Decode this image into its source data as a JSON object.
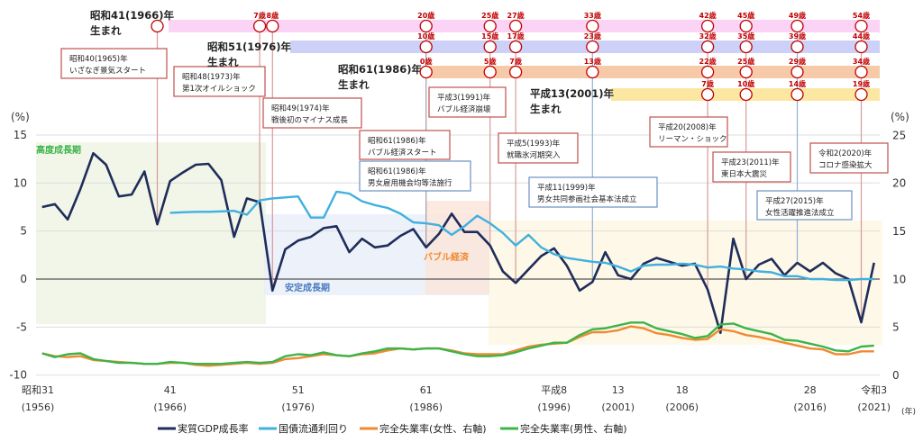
{
  "chart_data": {
    "type": "line",
    "title": "",
    "y_left_unit": "(%)",
    "y_right_unit": "(%)",
    "x_unit": "(年)",
    "ylim_left": [
      -10,
      15
    ],
    "ylim_right": [
      0,
      25
    ],
    "yticks_left": [
      "15",
      "10",
      "5",
      "0",
      "-5",
      "-10"
    ],
    "yticks_right": [
      "25",
      "20",
      "15",
      "10",
      "5",
      "0"
    ],
    "grid": true,
    "legend_position": "bottom",
    "x_ticks": [
      {
        "year": 1956,
        "era": "昭和31",
        "ad": "(1956)"
      },
      {
        "year": 1966,
        "era": "41",
        "ad": "(1966)"
      },
      {
        "year": 1976,
        "era": "51",
        "ad": "(1976)"
      },
      {
        "year": 1986,
        "era": "61",
        "ad": "(1986)"
      },
      {
        "year": 1996,
        "era": "平成8",
        "ad": "(1996)"
      },
      {
        "year": 2001,
        "era": "13",
        "ad": "(2001)"
      },
      {
        "year": 2006,
        "era": "18",
        "ad": "(2006)"
      },
      {
        "year": 2016,
        "era": "28",
        "ad": "(2016)"
      },
      {
        "year": 2021,
        "era": "令和3",
        "ad": "(2021)"
      }
    ],
    "series": [
      {
        "name": "実質GDP成長率",
        "axis": "left",
        "color": "#1f2d5a",
        "start": 1956,
        "values": [
          7.5,
          7.8,
          6.2,
          9.4,
          13.1,
          11.9,
          8.6,
          8.8,
          11.2,
          5.7,
          10.2,
          11.1,
          11.9,
          12.0,
          10.3,
          4.4,
          8.4,
          8.0,
          -1.2,
          3.1,
          4.0,
          4.4,
          5.3,
          5.5,
          2.8,
          4.2,
          3.3,
          3.5,
          4.5,
          5.2,
          3.3,
          4.7,
          6.8,
          4.9,
          4.9,
          3.5,
          0.8,
          -0.4,
          1.0,
          2.4,
          3.2,
          1.4,
          -1.2,
          -0.3,
          2.8,
          0.4,
          0.0,
          1.6,
          2.2,
          1.8,
          1.4,
          1.6,
          -1.1,
          -5.6,
          4.2,
          0.0,
          1.5,
          2.1,
          0.4,
          1.7,
          0.8,
          1.7,
          0.6,
          0.0,
          -4.5,
          1.7
        ]
      },
      {
        "name": "国債流通利回り",
        "axis": "left",
        "color": "#40b0e0",
        "start": 1966,
        "values": [
          6.9,
          6.95,
          7.0,
          7.0,
          7.05,
          7.1,
          6.7,
          8.2,
          8.4,
          8.5,
          8.6,
          6.4,
          6.4,
          9.1,
          8.9,
          8.1,
          7.7,
          7.4,
          6.8,
          5.9,
          5.8,
          5.6,
          4.6,
          5.5,
          6.6,
          5.8,
          4.8,
          3.5,
          4.6,
          3.3,
          2.6,
          2.2,
          2.0,
          1.8,
          1.7,
          1.3,
          0.8,
          1.4,
          1.5,
          1.5,
          1.6,
          1.5,
          1.2,
          1.3,
          1.1,
          1.0,
          0.8,
          0.7,
          0.3,
          0.3,
          0.0,
          0.0,
          -0.1,
          -0.1,
          0.0,
          0.0
        ]
      },
      {
        "name": "完全失業率(女性、右軸)",
        "axis": "right",
        "color": "#f08a30",
        "start": 1956,
        "values": [
          2.3,
          2.0,
          1.9,
          2.0,
          1.6,
          1.5,
          1.4,
          1.3,
          1.2,
          1.2,
          1.3,
          1.3,
          1.1,
          1.0,
          1.1,
          1.2,
          1.3,
          1.2,
          1.3,
          1.7,
          1.8,
          2.0,
          2.2,
          2.1,
          2.0,
          2.2,
          2.3,
          2.6,
          2.8,
          2.7,
          2.8,
          2.8,
          2.6,
          2.3,
          2.2,
          2.2,
          2.2,
          2.6,
          3.0,
          3.2,
          3.3,
          3.4,
          4.0,
          4.5,
          4.5,
          4.7,
          5.1,
          4.9,
          4.4,
          4.2,
          3.9,
          3.7,
          3.8,
          4.8,
          4.6,
          4.2,
          4.0,
          3.7,
          3.4,
          3.1,
          2.8,
          2.7,
          2.2,
          2.2,
          2.5,
          2.5
        ]
      },
      {
        "name": "完全失業率(男性、右軸)",
        "axis": "right",
        "color": "#3cb44a",
        "start": 1956,
        "values": [
          2.3,
          1.9,
          2.2,
          2.3,
          1.7,
          1.5,
          1.3,
          1.3,
          1.2,
          1.2,
          1.4,
          1.3,
          1.2,
          1.2,
          1.2,
          1.3,
          1.4,
          1.3,
          1.4,
          2.0,
          2.2,
          2.1,
          2.4,
          2.1,
          2.0,
          2.3,
          2.5,
          2.8,
          2.8,
          2.7,
          2.8,
          2.8,
          2.5,
          2.2,
          2.0,
          2.0,
          2.1,
          2.4,
          2.8,
          3.1,
          3.4,
          3.4,
          4.2,
          4.8,
          4.9,
          5.2,
          5.5,
          5.5,
          4.9,
          4.6,
          4.3,
          3.9,
          4.1,
          5.3,
          5.4,
          4.9,
          4.6,
          4.3,
          3.7,
          3.6,
          3.3,
          3.0,
          2.6,
          2.5,
          3.0,
          3.1
        ]
      }
    ],
    "periods": [
      {
        "label": "高度成長期",
        "color": "#3cb44a"
      },
      {
        "label": "安定成長期",
        "color": "#4a7cc0"
      },
      {
        "label": "バブル経済",
        "color": "#f08a30"
      }
    ],
    "annotations": [
      {
        "year": 1965,
        "kind": "event",
        "line1": "昭和40(1965)年",
        "line2": "いざなぎ景気スタート"
      },
      {
        "year": 1973,
        "kind": "event",
        "line1": "昭和48(1973)年",
        "line2": "第1次オイルショック"
      },
      {
        "year": 1974,
        "kind": "event",
        "line1": "昭和49(1974)年",
        "line2": "戦後初のマイナス成長"
      },
      {
        "year": 1991,
        "kind": "event",
        "line1": "平成3(1991)年",
        "line2": "バブル経済崩壊"
      },
      {
        "year": 1986,
        "kind": "event",
        "line1": "昭和61(1986)年",
        "line2": "バブル経済スタート"
      },
      {
        "year": 1986,
        "kind": "law",
        "line1": "昭和61(1986)年",
        "line2": "男女雇用機会均等法施行"
      },
      {
        "year": 1993,
        "kind": "event",
        "line1": "平成5(1993)年",
        "line2": "就職氷河期突入"
      },
      {
        "year": 1999,
        "kind": "law",
        "line1": "平成11(1999)年",
        "line2": "男女共同参画社会基本法成立"
      },
      {
        "year": 2008,
        "kind": "event",
        "line1": "平成20(2008)年",
        "line2": "リーマン・ショック"
      },
      {
        "year": 2011,
        "kind": "event",
        "line1": "平成23(2011)年",
        "line2": "東日本大震災"
      },
      {
        "year": 2015,
        "kind": "law",
        "line1": "平成27(2015)年",
        "line2": "女性活躍推進法成立"
      },
      {
        "year": 2020,
        "kind": "event",
        "line1": "令和2(2020)年",
        "line2": "コロナ感染拡大"
      }
    ],
    "cohorts": [
      {
        "line1": "昭和41(1966)年",
        "line2": "生まれ",
        "color": "#fbd3f5",
        "markers": [
          {
            "year": 1965,
            "age": ""
          },
          {
            "year": 1973,
            "age": "7歳"
          },
          {
            "year": 1974,
            "age": "8歳"
          },
          {
            "year": 1986,
            "age": "20歳"
          },
          {
            "year": 1991,
            "age": "25歳"
          },
          {
            "year": 1993,
            "age": "27歳"
          },
          {
            "year": 1999,
            "age": "33歳"
          },
          {
            "year": 2008,
            "age": "42歳"
          },
          {
            "year": 2011,
            "age": "45歳"
          },
          {
            "year": 2015,
            "age": "49歳"
          },
          {
            "year": 2020,
            "age": "54歳"
          }
        ]
      },
      {
        "line1": "昭和51(1976)年",
        "line2": "生まれ",
        "color": "#cdd0f7",
        "markers": [
          {
            "year": 1986,
            "age": "10歳"
          },
          {
            "year": 1991,
            "age": "15歳"
          },
          {
            "year": 1993,
            "age": "17歳"
          },
          {
            "year": 1999,
            "age": "23歳"
          },
          {
            "year": 2008,
            "age": "32歳"
          },
          {
            "year": 2011,
            "age": "35歳"
          },
          {
            "year": 2015,
            "age": "39歳"
          },
          {
            "year": 2020,
            "age": "44歳"
          }
        ]
      },
      {
        "line1": "昭和61(1986)年",
        "line2": "生まれ",
        "color": "#f6c9a8",
        "markers": [
          {
            "year": 1986,
            "age": "0歳"
          },
          {
            "year": 1991,
            "age": "5歳"
          },
          {
            "year": 1993,
            "age": "7歳"
          },
          {
            "year": 1999,
            "age": "13歳"
          },
          {
            "year": 2008,
            "age": "22歳"
          },
          {
            "year": 2011,
            "age": "25歳"
          },
          {
            "year": 2015,
            "age": "29歳"
          },
          {
            "year": 2020,
            "age": "34歳"
          }
        ]
      },
      {
        "line1": "平成13(2001)年",
        "line2": "生まれ",
        "color": "#fbe6a2",
        "markers": [
          {
            "year": 2008,
            "age": "7歳"
          },
          {
            "year": 2011,
            "age": "10歳"
          },
          {
            "year": 2015,
            "age": "14歳"
          },
          {
            "year": 2020,
            "age": "19歳"
          }
        ]
      }
    ],
    "colors": {
      "event_border": "#c0504d",
      "law_border": "#6b8fc4",
      "circle": "#c00000",
      "age_text": "#c00000"
    }
  }
}
